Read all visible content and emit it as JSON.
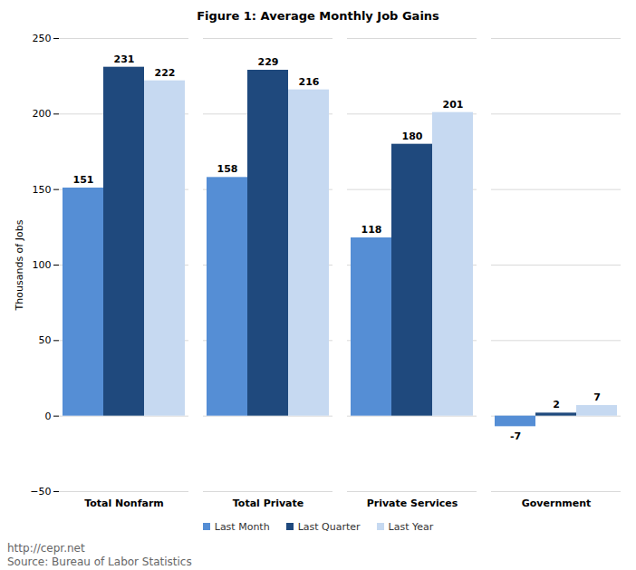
{
  "chart_data": {
    "type": "bar",
    "title": "Figure 1: Average Monthly Job Gains",
    "ylabel": "Thousands of Jobs",
    "categories": [
      "Total Nonfarm",
      "Total Private",
      "Private Services",
      "Government"
    ],
    "series": [
      {
        "name": "Last Month",
        "color": "#558ed5",
        "values": [
          151,
          158,
          118,
          -7
        ]
      },
      {
        "name": "Last Quarter",
        "color": "#1f497d",
        "values": [
          231,
          229,
          180,
          2
        ]
      },
      {
        "name": "Last Year",
        "color": "#c6d9f1",
        "values": [
          222,
          216,
          201,
          7
        ]
      }
    ],
    "ylim": [
      -50,
      250
    ],
    "yticks": [
      -50,
      0,
      50,
      100,
      150,
      200,
      250
    ],
    "grid": true,
    "data_labels": true,
    "legend": "bottom",
    "annotations": [
      "http://cepr.net",
      "Source: Bureau of Labor Statistics"
    ]
  }
}
